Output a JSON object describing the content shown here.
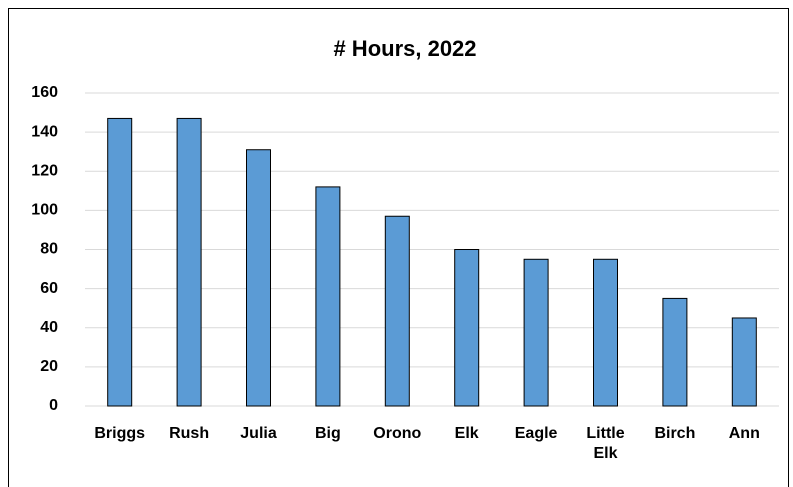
{
  "chart_data": {
    "type": "bar",
    "title": "# Hours, 2022",
    "categories": [
      "Briggs",
      "Rush",
      "Julia",
      "Big",
      "Orono",
      "Elk",
      "Eagle",
      "Little Elk",
      "Birch",
      "Ann"
    ],
    "values": [
      147,
      147,
      131,
      112,
      97,
      80,
      75,
      75,
      55,
      45
    ],
    "color": "#5b9bd5",
    "ylim": [
      0,
      160
    ],
    "yticks": [
      0,
      20,
      40,
      60,
      80,
      100,
      120,
      140,
      160
    ],
    "grid": true
  }
}
